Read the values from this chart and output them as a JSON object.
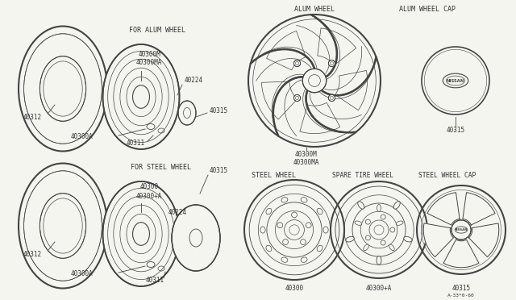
{
  "bg_color": "#f5f5f0",
  "line_color": "#444444",
  "text_color": "#333333",
  "font_size": 6.0,
  "sections": {
    "for_alum_wheel_label": "FOR ALUM WHEEL",
    "for_steel_wheel_label": "FOR STEEL WHEEL",
    "alum_wheel_label": "ALUM WHEEL",
    "alum_wheel_cap_label": "ALUM WHEEL CAP",
    "steel_wheel_label": "STEEL WHEEL",
    "spare_tire_wheel_label": "SPARE TIRE WHEEL",
    "steel_wheel_cap_label": "STEEL WHEEL CAP"
  },
  "note": "A·33*0·60"
}
